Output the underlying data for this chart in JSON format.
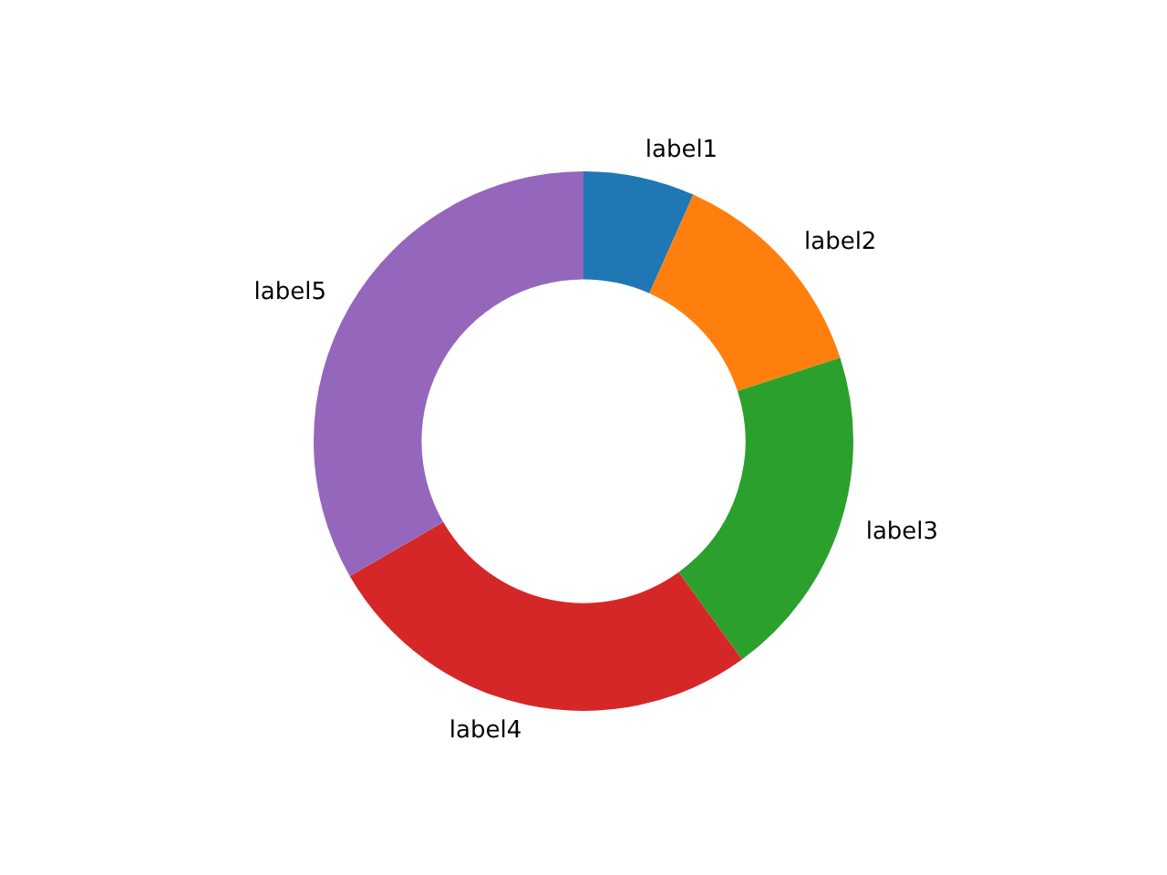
{
  "chart_data": {
    "type": "donut",
    "categories": [
      "label1",
      "label2",
      "label3",
      "label4",
      "label5"
    ],
    "values": [
      6.67,
      13.33,
      20,
      26.67,
      33.33
    ],
    "colors": [
      "#1f77b4",
      "#ff7f0e",
      "#2ca02c",
      "#d62728",
      "#9467bd"
    ],
    "legend": false
  }
}
